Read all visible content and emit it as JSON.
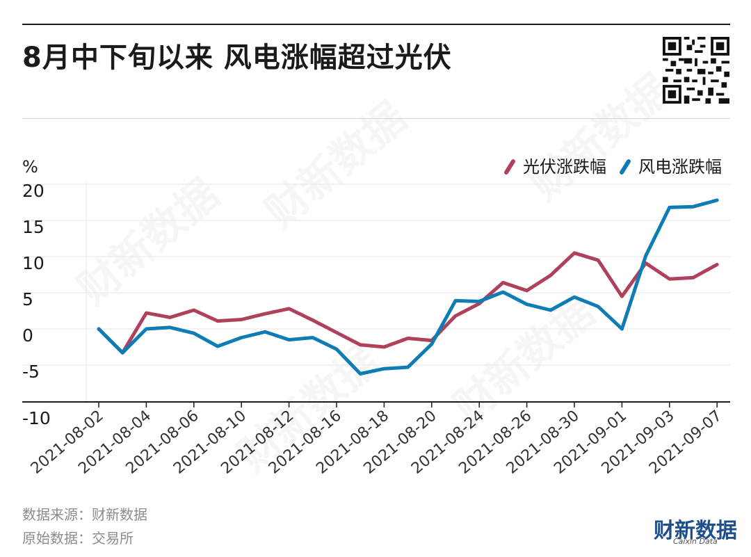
{
  "header": {
    "title": "8月中下旬以来 风电涨幅超过光伏"
  },
  "footer": {
    "source_line": "数据来源：财新数据",
    "raw_line": "原始数据：交易所",
    "logo_text": "财新数据",
    "logo_sub": "Caixin Data"
  },
  "colors": {
    "solar": "#b0415a",
    "wind": "#0f7db5",
    "axis": "#1a1a1a",
    "grid": "#e6e6e6",
    "text": "#1a1a1a"
  },
  "chart_data": {
    "type": "line",
    "unit_label": "%",
    "ylim": [
      -10,
      20
    ],
    "y_ticks": [
      20,
      15,
      10,
      5,
      0,
      -5,
      -10
    ],
    "x_tick_labels": [
      "2021-08-02",
      "2021-08-04",
      "2021-08-06",
      "2021-08-10",
      "2021-08-12",
      "2021-08-16",
      "2021-08-18",
      "2021-08-20",
      "2021-08-24",
      "2021-08-26",
      "2021-08-30",
      "2021-09-01",
      "2021-09-03",
      "2021-09-07"
    ],
    "x_count": 27,
    "tick_every": 2,
    "legend_position": "top-right",
    "grid": true,
    "series": [
      {
        "name": "光伏涨跌幅",
        "color": "#b0415a",
        "values": [
          0,
          -3.3,
          2.2,
          1.6,
          2.6,
          1.1,
          1.3,
          2.1,
          2.8,
          1.2,
          -0.5,
          -2.2,
          -2.5,
          -1.3,
          -1.6,
          1.8,
          3.5,
          6.4,
          5.3,
          7.4,
          10.5,
          9.5,
          4.5,
          9.1,
          6.9,
          7.1,
          8.9
        ]
      },
      {
        "name": "风电涨跌幅",
        "color": "#0f7db5",
        "values": [
          0,
          -3.3,
          0,
          0.2,
          -0.6,
          -2.4,
          -1.2,
          -0.4,
          -1.5,
          -1.2,
          -2.8,
          -6.2,
          -5.5,
          -5.3,
          -2.1,
          3.9,
          3.8,
          5.1,
          3.4,
          2.6,
          4.4,
          3.1,
          0,
          10.1,
          16.8,
          16.9,
          17.8
        ]
      }
    ]
  }
}
